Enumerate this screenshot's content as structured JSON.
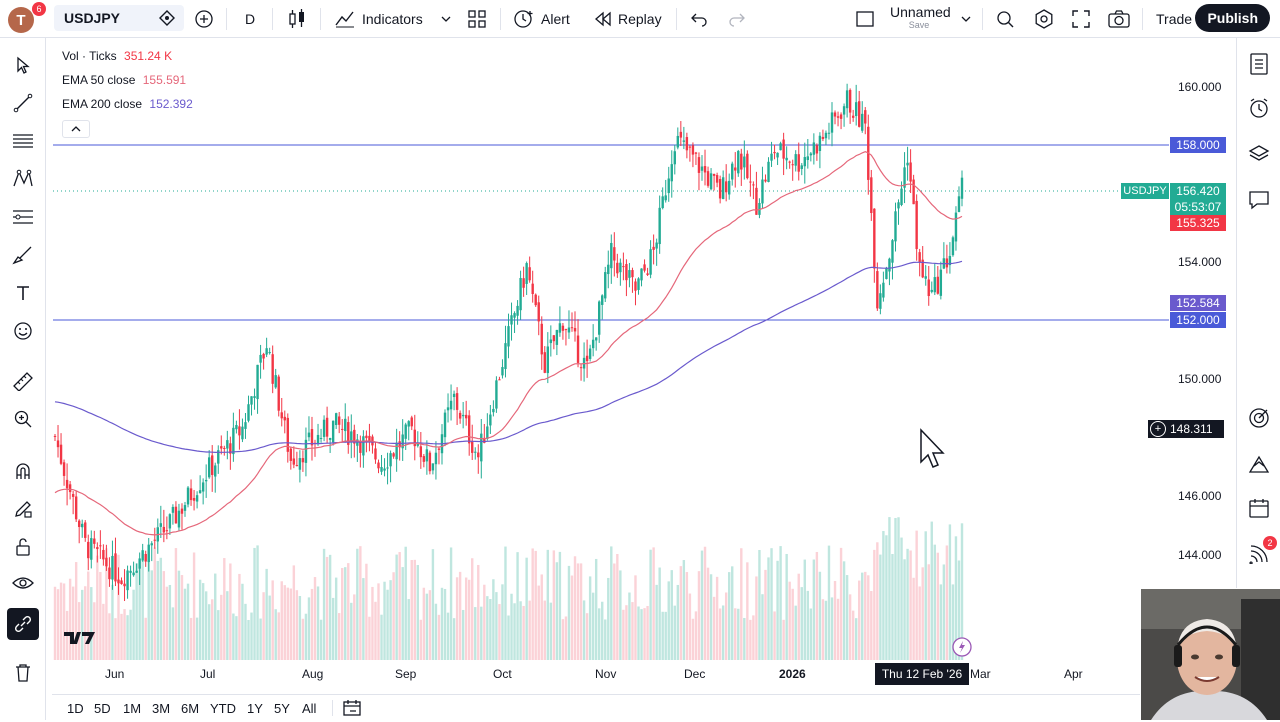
{
  "topbar": {
    "avatar_letter": "T",
    "notifications": "6",
    "symbol": "USDJPY",
    "interval": "D",
    "indicators_label": "Indicators",
    "alert_label": "Alert",
    "replay_label": "Replay",
    "layout_name": "Unnamed",
    "layout_save": "Save",
    "trade_label": "Trade",
    "publish_label": "Publish"
  },
  "legend": {
    "vol_label": "Vol · Ticks",
    "vol_value": "351.24 K",
    "ema50_label": "EMA 50 close",
    "ema50_value": "155.591",
    "ema200_label": "EMA 200 close",
    "ema200_value": "152.392"
  },
  "price_axis": {
    "ticks": [
      "160.000",
      "154.000",
      "150.000",
      "146.000",
      "144.000"
    ],
    "resistance_label": "158.000",
    "symbol_tag": "USDJPY",
    "last_price": "156.420",
    "countdown": "05:53:07",
    "ema50_label": "155.325",
    "ema200_label": "152.584",
    "support_label": "152.000",
    "crosshair_price": "148.311"
  },
  "time_axis": {
    "labels": [
      "Jun",
      "Jul",
      "Aug",
      "Sep",
      "Oct",
      "Nov",
      "Dec",
      "2026",
      "Mar",
      "Apr"
    ],
    "crosshair_date": "Thu 12 Feb '26"
  },
  "range_buttons": [
    "1D",
    "5D",
    "1M",
    "3M",
    "6M",
    "YTD",
    "1Y",
    "5Y",
    "All"
  ],
  "right_badge": "2",
  "colors": {
    "up": "#22ab94",
    "down": "#f23645",
    "ema50": "#e5677a",
    "ema200": "#6a5acd",
    "hline": "#4a5ad8",
    "vol_up": "#bfe6df",
    "vol_down": "#fbd2d7"
  }
}
